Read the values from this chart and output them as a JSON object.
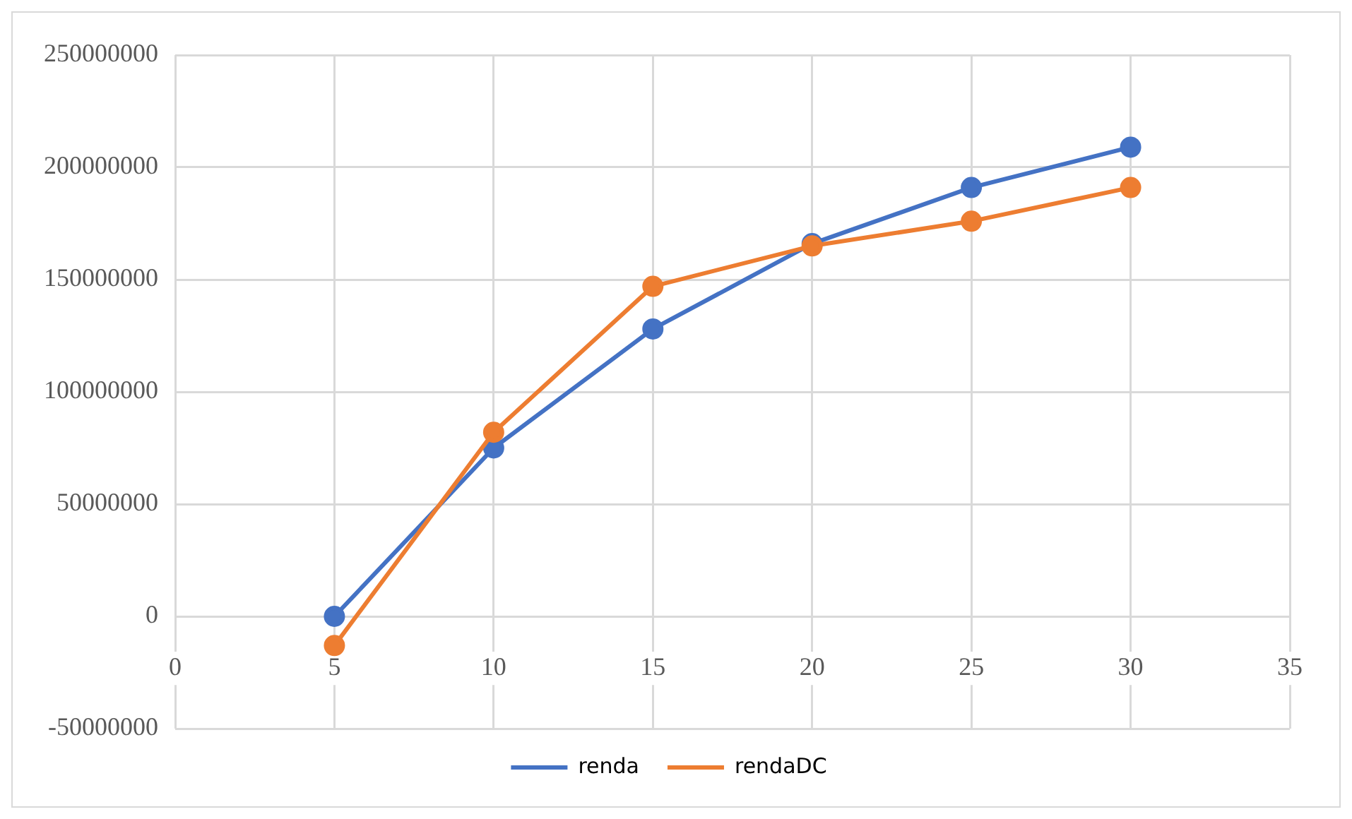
{
  "chart_data": {
    "type": "line",
    "x": [
      5,
      10,
      15,
      20,
      25,
      30
    ],
    "series": [
      {
        "name": "renda",
        "color": "#4472c4",
        "values": [
          0,
          75000000,
          128000000,
          166000000,
          191000000,
          209000000
        ]
      },
      {
        "name": "rendaDC",
        "color": "#ed7d31",
        "values": [
          -13000000,
          82000000,
          147000000,
          165000000,
          176000000,
          191000000
        ]
      }
    ],
    "xlim": [
      0,
      35
    ],
    "xticks": [
      0,
      5,
      10,
      15,
      20,
      25,
      30,
      35
    ],
    "ylim": [
      -50000000,
      250000000
    ],
    "yticks": [
      -50000000,
      0,
      50000000,
      100000000,
      150000000,
      200000000,
      250000000
    ],
    "grid": true,
    "legend": "bottom",
    "marker": "circle",
    "line_style": "solid"
  }
}
